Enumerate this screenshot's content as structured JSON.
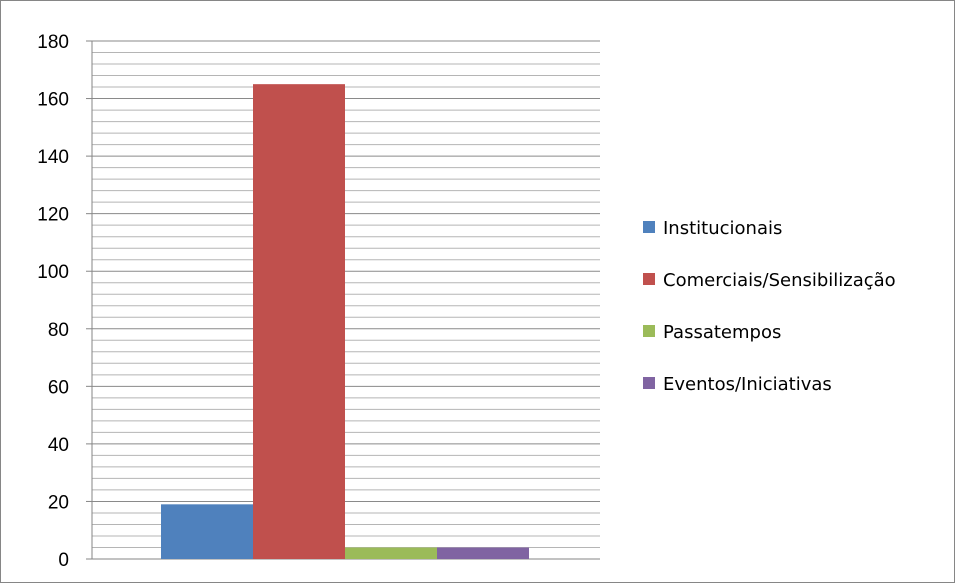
{
  "chart_data": {
    "type": "bar",
    "title": "",
    "xlabel": "",
    "ylabel": "",
    "ylim": [
      0,
      180
    ],
    "major_ticks": [
      0,
      20,
      40,
      60,
      80,
      100,
      120,
      140,
      160,
      180
    ],
    "tick_labels": [
      "0",
      "20",
      "40",
      "60",
      "80",
      "100",
      "120",
      "140",
      "160",
      "180"
    ],
    "minor_gridline_step": 4,
    "grid": true,
    "legend_position": "right",
    "series": [
      {
        "name": "Institucionais",
        "values": [
          19
        ],
        "color": "#4F81BD"
      },
      {
        "name": "Comerciais/Sensibilização",
        "values": [
          165
        ],
        "color": "#C0504D"
      },
      {
        "name": "Passatempos",
        "values": [
          4
        ],
        "color": "#9BBB59"
      },
      {
        "name": "Eventos/Iniciativas",
        "values": [
          4
        ],
        "color": "#8064A2"
      }
    ]
  }
}
